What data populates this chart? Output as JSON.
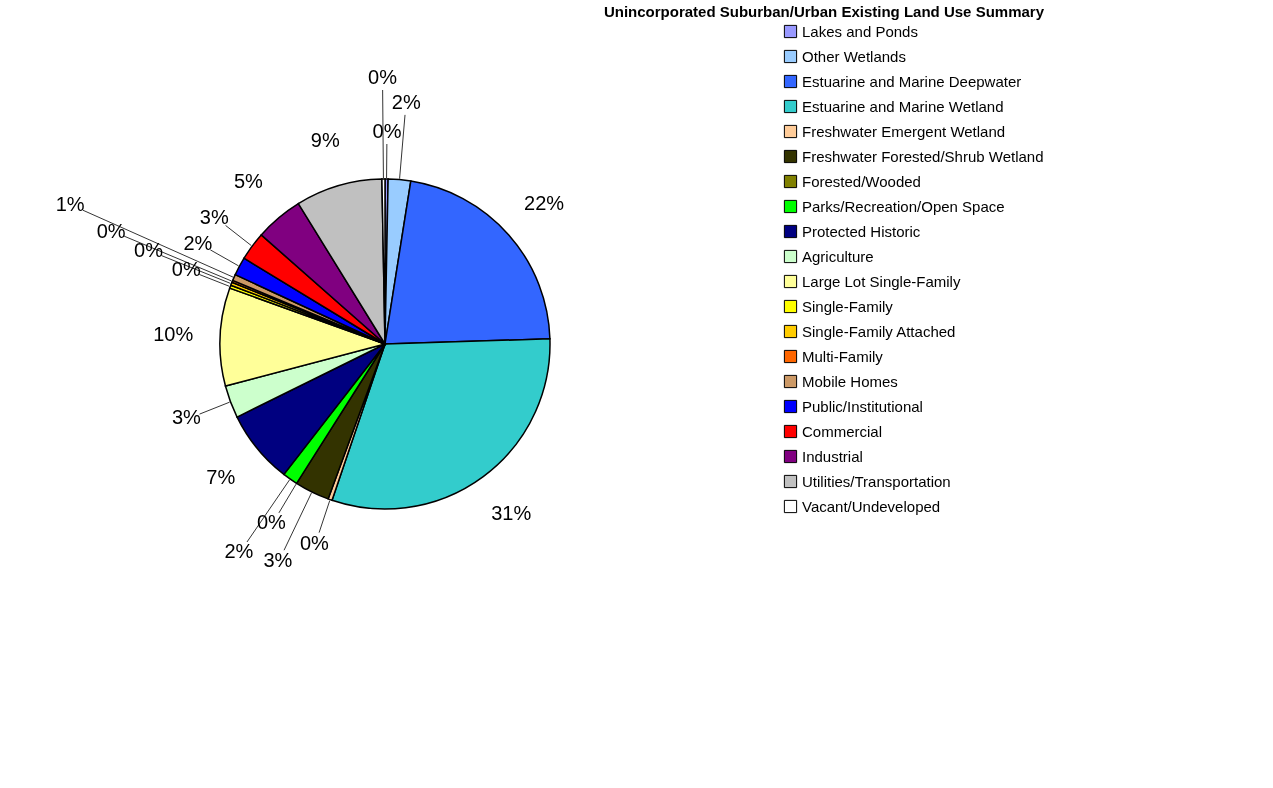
{
  "chart_data": {
    "type": "pie",
    "title": "Unincorporated Suburban/Urban Existing Land Use Summary",
    "categories": [
      "Lakes and Ponds",
      "Other Wetlands",
      "Estuarine and Marine Deepwater",
      "Estuarine and Marine Wetland",
      "Freshwater Emergent Wetland",
      "Freshwater Forested/Shrub Wetland",
      "Forested/Wooded",
      "Parks/Recreation/Open Space",
      "Protected Historic",
      "Agriculture",
      "Large Lot Single-Family",
      "Single-Family",
      "Single-Family Attached",
      "Multi-Family",
      "Mobile Homes",
      "Public/Institutional",
      "Commercial",
      "Industrial",
      "Utilities/Transportation",
      "Vacant/Undeveloped"
    ],
    "values": [
      0.3,
      2.2,
      22.0,
      30.7,
      0.4,
      3.4,
      0.0,
      1.5,
      7.2,
      3.2,
      9.6,
      0.3,
      0.3,
      0.2,
      0.6,
      1.8,
      2.8,
      4.7,
      8.5,
      0.3
    ],
    "value_labels": [
      "0%",
      "2%",
      "22%",
      "31%",
      "0%",
      "3%",
      "0%",
      "2%",
      "7%",
      "3%",
      "10%",
      "0%",
      "0%",
      "0%",
      "1%",
      "2%",
      "3%",
      "5%",
      "9%",
      "0%"
    ],
    "colors": [
      "#9999ff",
      "#99ccff",
      "#3366ff",
      "#33cccc",
      "#ffcc99",
      "#333300",
      "#808000",
      "#00ff00",
      "#000080",
      "#ccffcc",
      "#ffff99",
      "#ffff00",
      "#ffcc00",
      "#ff6600",
      "#cc9966",
      "#0000ff",
      "#ff0000",
      "#800080",
      "#c0c0c0",
      "#ffffff"
    ],
    "legend": "right"
  }
}
